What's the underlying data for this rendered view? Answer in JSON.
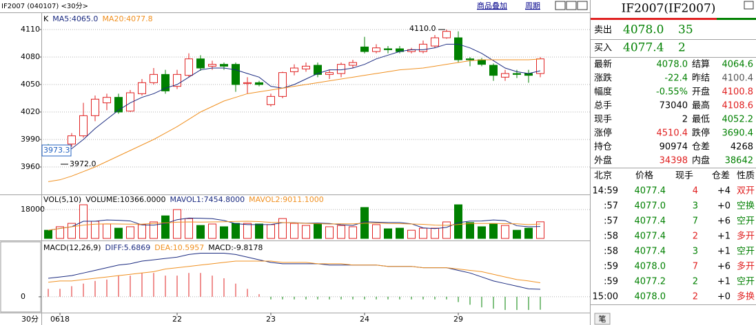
{
  "header": {
    "title": "IF2007 (040107) <30分>",
    "buttons": [
      "商品叠加",
      "周期"
    ]
  },
  "period_label": "30分",
  "chart_data": [
    {
      "type": "candlestick",
      "legend": [
        "K",
        "MA5:4065.0",
        "MA20:4077.8"
      ],
      "categories": [
        null,
        "0618",
        null,
        null,
        null,
        null,
        null,
        null,
        null,
        null,
        null,
        "22",
        null,
        null,
        null,
        null,
        null,
        null,
        null,
        "23",
        null,
        null,
        null,
        null,
        null,
        null,
        null,
        "24",
        null,
        null,
        null,
        null,
        null,
        null,
        null,
        "29",
        null,
        null,
        null,
        null,
        null,
        null,
        null
      ],
      "open": [
        3978,
        3976,
        3985,
        3994,
        4016,
        4030,
        4036,
        4021,
        4040,
        4052,
        4061,
        4048,
        4060,
        4078,
        4070,
        4072,
        4072,
        4051,
        4052,
        4028,
        4037,
        4064,
        4067,
        4071,
        4061,
        4062,
        4071,
        4091,
        4086,
        4089,
        4089,
        4086,
        4086,
        4092,
        4101,
        4101,
        4078,
        4077,
        4071,
        4058,
        4062,
        4062,
        4062
      ],
      "high": [
        3985,
        3982,
        3997,
        4030,
        4038,
        4040,
        4040,
        4044,
        4056,
        4068,
        4066,
        4066,
        4084,
        4082,
        4076,
        4074,
        4074,
        4058,
        4054,
        4040,
        4064,
        4072,
        4074,
        4074,
        4066,
        4074,
        4077,
        4102,
        4094,
        4092,
        4092,
        4090,
        4098,
        4104,
        4110,
        4108,
        4080,
        4079,
        4073,
        4066,
        4066,
        4066,
        4080
      ],
      "low": [
        3972,
        3972,
        3982,
        3992,
        4010,
        4022,
        4018,
        4020,
        4038,
        4050,
        4040,
        4045,
        4058,
        4065,
        4066,
        4066,
        4042,
        4040,
        4048,
        4026,
        4035,
        4060,
        4064,
        4058,
        4056,
        4058,
        4068,
        4084,
        4084,
        4084,
        4084,
        4084,
        4084,
        4090,
        4100,
        4074,
        4070,
        4070,
        4054,
        4054,
        4057,
        4052,
        4058
      ],
      "close": [
        3976,
        3978,
        3994,
        4016,
        4034,
        4036,
        4020,
        4041,
        4052,
        4061,
        4043,
        4061,
        4078,
        4068,
        4072,
        4070,
        4050,
        4052,
        4050,
        4037,
        4063,
        4068,
        4070,
        4061,
        4063,
        4072,
        4074,
        4086,
        4090,
        4088,
        4086,
        4088,
        4094,
        4101,
        4108,
        4077,
        4077,
        4072,
        4060,
        4062,
        4061,
        4060,
        4078
      ],
      "series": [
        {
          "color": "#1a2a80",
          "values": [
            3972,
            3974,
            3980,
            3990,
            4002,
            4012,
            4022,
            4030,
            4036,
            4040,
            4046,
            4050,
            4058,
            4066,
            4068,
            4068,
            4066,
            4062,
            4058,
            4048,
            4046,
            4050,
            4056,
            4062,
            4066,
            4066,
            4068,
            4072,
            4078,
            4082,
            4086,
            4088,
            4088,
            4090,
            4094,
            4094,
            4090,
            4084,
            4076,
            4068,
            4064,
            4062,
            4065
          ]
        },
        {
          "color": "#f09020",
          "values": [
            3944,
            3946,
            3950,
            3955,
            3960,
            3966,
            3972,
            3978,
            3984,
            3990,
            3997,
            4004,
            4012,
            4020,
            4026,
            4032,
            4036,
            4040,
            4042,
            4044,
            4046,
            4048,
            4050,
            4052,
            4054,
            4056,
            4058,
            4060,
            4062,
            4064,
            4066,
            4067,
            4068,
            4070,
            4072,
            4074,
            4076,
            4077,
            4077,
            4077,
            4077,
            4077,
            4077.8
          ]
        }
      ],
      "ylim": [
        3930.75,
        4127.25
      ],
      "yticks": [
        3960,
        3990,
        4020,
        4050,
        4080,
        4110
      ],
      "grid": true,
      "up_color": "#e02020",
      "down_color": "#008000",
      "annotations": [
        "4110.0",
        "3972.0",
        "3973.3"
      ]
    },
    {
      "type": "bar",
      "legend": [
        "VOL(5,10)",
        "VOLUME:10366.0000",
        "MAVOL1:7454.8000",
        "MAVOL2:9011.1000"
      ],
      "values": [
        5100,
        7300,
        9400,
        21000,
        10700,
        9000,
        6400,
        7300,
        8600,
        10300,
        14100,
        18000,
        12400,
        8100,
        9000,
        7300,
        9400,
        9400,
        9000,
        8600,
        12400,
        9400,
        8100,
        9400,
        7300,
        8100,
        7300,
        19300,
        8600,
        6000,
        6400,
        5100,
        6400,
        6400,
        10300,
        21000,
        9900,
        7300,
        9000,
        8100,
        5100,
        6400,
        10366
      ],
      "series": [
        {
          "color": "#1a2a80",
          "values": [
            5100,
            6200,
            7300,
            10700,
            10700,
            11500,
            11300,
            10900,
            8400,
            8300,
            9300,
            11700,
            12700,
            12600,
            12300,
            11200,
            9200,
            8600,
            8600,
            8700,
            9800,
            9800,
            9500,
            9600,
            9300,
            8500,
            8100,
            10400,
            10100,
            9900,
            9900,
            9100,
            6600,
            6100,
            6900,
            9800,
            10800,
            10900,
            11500,
            11100,
            7900,
            7300,
            7454.8
          ]
        },
        {
          "color": "#f09020",
          "values": [
            5100,
            6200,
            7300,
            8300,
            8900,
            9100,
            9000,
            8900,
            8900,
            9400,
            9700,
            10100,
            10300,
            10200,
            10300,
            10400,
            10600,
            10700,
            10500,
            10000,
            9900,
            9700,
            9400,
            9200,
            9000,
            9100,
            9100,
            9500,
            9600,
            9300,
            9200,
            9000,
            8800,
            8300,
            8200,
            8700,
            9300,
            9300,
            9300,
            9200,
            9100,
            8600,
            9011.1
          ]
        }
      ],
      "ylim": [
        0,
        27000
      ],
      "yticks": [
        18000
      ],
      "grid": true
    },
    {
      "type": "macd",
      "legend": [
        "MACD(12,26,9)",
        "DIFF:5.6869",
        "DEA:10.5957",
        "MACD:-9.8178"
      ],
      "values": [
        6,
        6,
        8,
        10,
        12,
        13,
        16,
        16,
        18,
        18,
        16,
        16,
        18,
        18,
        16,
        14,
        10,
        6,
        2,
        -2,
        -2,
        -2,
        -2,
        -2,
        -2,
        -2,
        -2,
        -2,
        -2,
        -2,
        -2,
        -2,
        -2,
        -2,
        -2,
        -4,
        -6,
        -8,
        -9,
        -10,
        -10,
        -10,
        -9.8178
      ],
      "series": [
        {
          "color": "#1a2a80",
          "values": [
            14,
            15,
            16,
            18,
            20,
            22,
            24,
            25,
            27,
            28,
            29,
            30,
            32,
            33,
            33,
            33,
            32,
            30,
            28,
            26,
            25,
            25,
            25,
            25,
            24,
            24,
            24,
            24,
            24,
            23,
            23,
            23,
            22,
            22,
            22,
            20,
            18,
            15,
            12,
            10,
            8,
            6,
            5.6869
          ]
        },
        {
          "color": "#f09020",
          "values": [
            11,
            12,
            12,
            13,
            14,
            15,
            16,
            17,
            18,
            19,
            21,
            22,
            23,
            24,
            25,
            26,
            27,
            27,
            27,
            27,
            26,
            26,
            26,
            25,
            25,
            25,
            24,
            24,
            24,
            23,
            23,
            23,
            22,
            22,
            22,
            21,
            20,
            19,
            17,
            15,
            13,
            12,
            10.5957
          ]
        }
      ],
      "ylim": [
        -12,
        40
      ],
      "yticks": [
        0
      ],
      "grid": true
    }
  ],
  "quote": {
    "title": "IF2007(IF2007)",
    "ask": [
      "卖出",
      "4078.0",
      "35"
    ],
    "bid": [
      "买入",
      "4077.4",
      "2"
    ],
    "rows": [
      [
        "最新",
        "4078.0",
        "结算",
        "4064.6"
      ],
      [
        "涨跌",
        "-22.4",
        "昨结",
        "4100.4"
      ],
      [
        "幅度",
        "-0.55%",
        "开盘",
        "4100.8"
      ],
      [
        "总手",
        "73040",
        "最高",
        "4108.6"
      ],
      [
        "现手",
        "2",
        "最低",
        "4052.2"
      ],
      [
        "涨停",
        "4510.4",
        "跌停",
        "3690.4"
      ],
      [
        "持仓",
        "90974",
        "仓差",
        "4268"
      ],
      [
        "外盘",
        "34398",
        "内盘",
        "38642"
      ]
    ]
  },
  "trades": {
    "header": [
      "北京",
      "价格",
      "现手",
      "仓差",
      "性质"
    ],
    "rows": [
      [
        "14:59",
        "4077.4",
        "4",
        "+4",
        "双开"
      ],
      [
        ":57",
        "4077.0",
        "3",
        "+0",
        "空换"
      ],
      [
        ":57",
        "4077.4",
        "7",
        "+6",
        "空开"
      ],
      [
        ":58",
        "4077.4",
        "2",
        "+1",
        "多开"
      ],
      [
        ":58",
        "4077.4",
        "3",
        "+1",
        "空开"
      ],
      [
        ":59",
        "4078.0",
        "7",
        "+6",
        "多开"
      ],
      [
        ":59",
        "4077.2",
        "2",
        "+1",
        "空开"
      ],
      [
        "15:00",
        "4078.0",
        "2",
        "+0",
        "多换"
      ]
    ],
    "tab": "笔"
  }
}
